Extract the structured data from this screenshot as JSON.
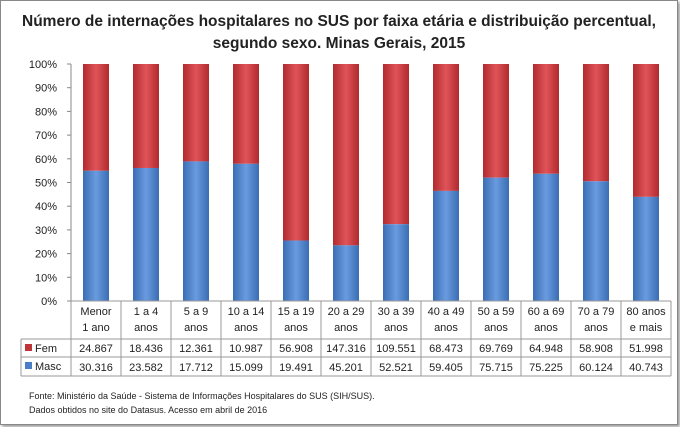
{
  "chart_data": {
    "type": "bar",
    "stacked": "percent",
    "title": "Número de internações hospitalares no SUS por faixa etária e distribuição percentual, segundo sexo. Minas Gerais, 2015",
    "categories": [
      [
        "Menor",
        "1 ano"
      ],
      [
        "1 a 4",
        "anos"
      ],
      [
        "5 a 9",
        "anos"
      ],
      [
        "10 a 14",
        "anos"
      ],
      [
        "15 a 19",
        "anos"
      ],
      [
        "20 a 29",
        "anos"
      ],
      [
        "30 a 39",
        "anos"
      ],
      [
        "40 a 49",
        "anos"
      ],
      [
        "50 a 59",
        "anos"
      ],
      [
        "60 a 69",
        "anos"
      ],
      [
        "70 a 79",
        "anos"
      ],
      [
        "80 anos",
        "e mais"
      ]
    ],
    "series": [
      {
        "name": "Fem",
        "color": "#c0353a",
        "values": [
          24867,
          18436,
          12361,
          10987,
          56908,
          147316,
          109551,
          68473,
          69769,
          64948,
          58908,
          51998
        ],
        "labels": [
          "24.867",
          "18.436",
          "12.361",
          "10.987",
          "56.908",
          "147.316",
          "109.551",
          "68.473",
          "69.769",
          "64.948",
          "58.908",
          "51.998"
        ]
      },
      {
        "name": "Masc",
        "color": "#4a7fc8",
        "values": [
          30316,
          23582,
          17712,
          15099,
          19491,
          45201,
          52521,
          59405,
          75715,
          75225,
          60124,
          40743
        ],
        "labels": [
          "30.316",
          "23.582",
          "17.712",
          "15.099",
          "19.491",
          "45.201",
          "52.521",
          "59.405",
          "75.715",
          "75.225",
          "60.124",
          "40.743"
        ]
      }
    ],
    "yticks": [
      "0%",
      "10%",
      "20%",
      "30%",
      "40%",
      "50%",
      "60%",
      "70%",
      "80%",
      "90%",
      "100%"
    ],
    "ylim": [
      0,
      100
    ],
    "grid": false,
    "legend": "data-table"
  },
  "source": [
    "Fonte: Ministério da Saúde - Sistema de Informações Hospitalares do SUS (SIH/SUS).",
    "Dados obtidos no site do Datasus. Acesso em abril de 2016"
  ]
}
